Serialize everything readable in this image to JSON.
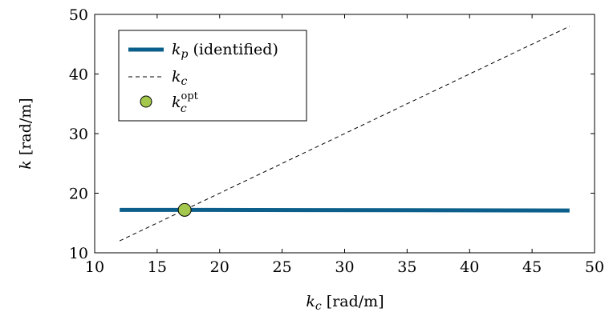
{
  "chart_data": {
    "type": "line",
    "xlabel": "k_c [rad/m]",
    "ylabel": "k [rad/m]",
    "xlim": [
      10,
      50
    ],
    "ylim": [
      10,
      50
    ],
    "xticks": [
      10,
      15,
      20,
      25,
      30,
      35,
      40,
      45,
      50
    ],
    "yticks": [
      10,
      20,
      30,
      40,
      50
    ],
    "grid": false,
    "legend_position": "top-left",
    "series": [
      {
        "name": "k_p (identified)",
        "style": "solid-thick",
        "color": "#0b5f8a",
        "x": [
          12,
          17.2,
          48
        ],
        "y": [
          17.2,
          17.2,
          17.1
        ]
      },
      {
        "name": "k_c",
        "style": "dashed",
        "color": "#000000",
        "x": [
          12,
          48
        ],
        "y": [
          12,
          48
        ]
      },
      {
        "name": "k_c^opt",
        "style": "marker",
        "color": "#a4c84d",
        "x": [
          17.2
        ],
        "y": [
          17.2
        ]
      }
    ]
  }
}
